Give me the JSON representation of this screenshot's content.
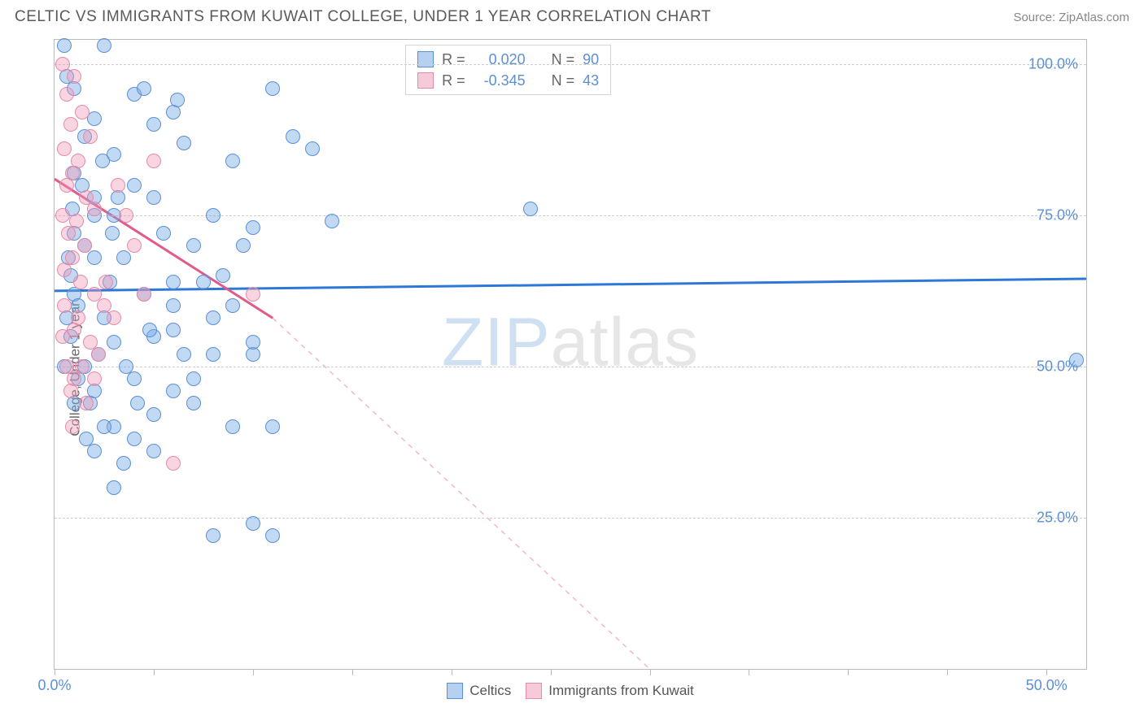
{
  "title": "CELTIC VS IMMIGRANTS FROM KUWAIT COLLEGE, UNDER 1 YEAR CORRELATION CHART",
  "source": "Source: ZipAtlas.com",
  "ylabel": "College, Under 1 year",
  "watermark_a": "ZIP",
  "watermark_b": "atlas",
  "chart": {
    "type": "scatter",
    "background_color": "#ffffff",
    "grid_color": "#cccccc",
    "grid_dash": "4,4",
    "border_color": "#bbbbbb",
    "xlim": [
      0,
      52
    ],
    "ylim": [
      0,
      104
    ],
    "xticks": [
      0,
      5,
      10,
      15,
      20,
      25,
      30,
      35,
      40,
      45,
      50
    ],
    "xtick_labels": {
      "0": "0.0%",
      "50": "50.0%"
    },
    "yticks": [
      25,
      50,
      75,
      100
    ],
    "ytick_labels": [
      "25.0%",
      "50.0%",
      "75.0%",
      "100.0%"
    ],
    "marker_size": 18,
    "series": [
      {
        "name": "Celtics",
        "color_fill": "rgba(120,170,230,0.45)",
        "color_stroke": "#5b8fd6",
        "R": "0.020",
        "N": "90",
        "trend": {
          "x1": 0,
          "y1": 62.5,
          "x2": 52,
          "y2": 64.5,
          "stroke": "#2d78d6",
          "width": 3,
          "dash": ""
        },
        "points": [
          [
            0.5,
            103
          ],
          [
            2.5,
            103
          ],
          [
            4,
            95
          ],
          [
            6,
            92
          ],
          [
            2,
            91
          ],
          [
            1.5,
            88
          ],
          [
            3,
            85
          ],
          [
            1,
            82
          ],
          [
            4,
            80
          ],
          [
            2,
            78
          ],
          [
            5,
            78
          ],
          [
            3,
            75
          ],
          [
            10,
            73
          ],
          [
            14,
            74
          ],
          [
            12,
            88
          ],
          [
            6.5,
            87
          ],
          [
            8,
            75
          ],
          [
            24,
            76
          ],
          [
            1,
            72
          ],
          [
            1.5,
            70
          ],
          [
            2,
            68
          ],
          [
            3.5,
            68
          ],
          [
            0.8,
            65
          ],
          [
            4.5,
            62
          ],
          [
            6,
            60
          ],
          [
            1,
            62
          ],
          [
            2.5,
            58
          ],
          [
            5,
            55
          ],
          [
            3,
            54
          ],
          [
            8,
            52
          ],
          [
            10,
            52
          ],
          [
            9,
            60
          ],
          [
            1.5,
            50
          ],
          [
            4,
            48
          ],
          [
            2,
            46
          ],
          [
            6,
            46
          ],
          [
            7,
            44
          ],
          [
            3,
            40
          ],
          [
            9,
            40
          ],
          [
            1,
            44
          ],
          [
            5,
            36
          ],
          [
            3.5,
            34
          ],
          [
            8,
            22
          ],
          [
            10,
            24
          ],
          [
            11,
            22
          ],
          [
            8.5,
            65
          ],
          [
            7,
            70
          ],
          [
            2,
            75
          ],
          [
            0.8,
            55
          ],
          [
            1.2,
            48
          ],
          [
            4.5,
            96
          ],
          [
            6.2,
            94
          ],
          [
            11,
            96
          ],
          [
            13,
            86
          ],
          [
            9,
            84
          ],
          [
            5.5,
            72
          ],
          [
            7.5,
            64
          ],
          [
            2.8,
            64
          ],
          [
            1.2,
            60
          ],
          [
            0.6,
            58
          ],
          [
            6.5,
            52
          ],
          [
            2.5,
            40
          ],
          [
            4,
            38
          ],
          [
            5,
            42
          ],
          [
            6,
            56
          ],
          [
            9.5,
            70
          ],
          [
            51.5,
            51
          ],
          [
            3,
            30
          ],
          [
            4.2,
            44
          ],
          [
            1.8,
            44
          ],
          [
            2.2,
            52
          ],
          [
            0.9,
            76
          ],
          [
            1.4,
            80
          ],
          [
            2.4,
            84
          ],
          [
            5,
            90
          ],
          [
            1,
            96
          ],
          [
            0.6,
            98
          ],
          [
            3.2,
            78
          ],
          [
            4.8,
            56
          ],
          [
            0.7,
            68
          ],
          [
            2.9,
            72
          ],
          [
            6,
            64
          ],
          [
            8,
            58
          ],
          [
            3.6,
            50
          ],
          [
            11,
            40
          ],
          [
            10,
            54
          ],
          [
            7,
            48
          ],
          [
            1.6,
            38
          ],
          [
            0.5,
            50
          ],
          [
            2,
            36
          ]
        ]
      },
      {
        "name": "Immigrants from Kuwait",
        "color_fill": "rgba(240,150,180,0.4)",
        "color_stroke": "#e68aa8",
        "R": "-0.345",
        "N": "43",
        "trend_solid": {
          "x1": 0,
          "y1": 81,
          "x2": 11,
          "y2": 58,
          "stroke": "#e05a8a",
          "width": 3
        },
        "trend_dash": {
          "x1": 11,
          "y1": 58,
          "x2": 30,
          "y2": 0,
          "stroke": "#f2b6c9",
          "width": 1.5,
          "dash": "6,6"
        },
        "points": [
          [
            0.4,
            100
          ],
          [
            1,
            98
          ],
          [
            0.6,
            95
          ],
          [
            1.4,
            92
          ],
          [
            0.8,
            90
          ],
          [
            1.8,
            88
          ],
          [
            0.5,
            86
          ],
          [
            1.2,
            84
          ],
          [
            0.9,
            82
          ],
          [
            0.6,
            80
          ],
          [
            1.6,
            78
          ],
          [
            2,
            76
          ],
          [
            0.4,
            75
          ],
          [
            1.1,
            74
          ],
          [
            0.7,
            72
          ],
          [
            1.5,
            70
          ],
          [
            0.9,
            68
          ],
          [
            0.5,
            66
          ],
          [
            1.3,
            64
          ],
          [
            5,
            84
          ],
          [
            2.5,
            60
          ],
          [
            3,
            58
          ],
          [
            1,
            56
          ],
          [
            1.8,
            54
          ],
          [
            2.2,
            52
          ],
          [
            0.6,
            50
          ],
          [
            1.4,
            50
          ],
          [
            1,
            48
          ],
          [
            0.8,
            46
          ],
          [
            2,
            62
          ],
          [
            2.6,
            64
          ],
          [
            3.2,
            80
          ],
          [
            3.6,
            75
          ],
          [
            4,
            70
          ],
          [
            4.5,
            62
          ],
          [
            0.5,
            60
          ],
          [
            1.2,
            58
          ],
          [
            6,
            34
          ],
          [
            0.9,
            40
          ],
          [
            1.6,
            44
          ],
          [
            2,
            48
          ],
          [
            10,
            62
          ],
          [
            0.4,
            55
          ]
        ]
      }
    ]
  },
  "legend_top": {
    "R_label": "R =",
    "N_label": "N ="
  },
  "legend_bottom": [
    {
      "swatch": "blue",
      "label": "Celtics"
    },
    {
      "swatch": "pink",
      "label": "Immigrants from Kuwait"
    }
  ]
}
